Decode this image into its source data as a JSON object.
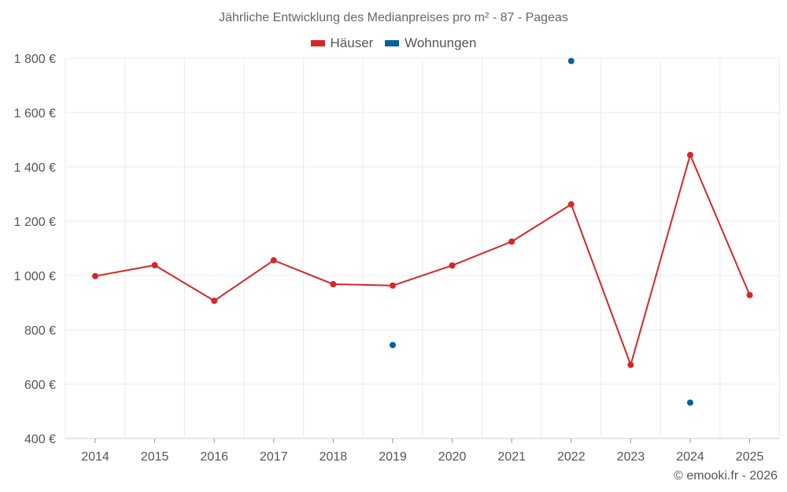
{
  "chart_data": {
    "type": "line",
    "title": "Jährliche Entwicklung des Medianpreises pro m² - 87 - Pageas",
    "categories": [
      "2014",
      "2015",
      "2016",
      "2017",
      "2018",
      "2019",
      "2020",
      "2021",
      "2022",
      "2023",
      "2024",
      "2025"
    ],
    "series": [
      {
        "name": "Häuser",
        "color": "#d62728",
        "style": "line-markers",
        "values": [
          998,
          1038,
          907,
          1056,
          968,
          963,
          1037,
          1125,
          1262,
          671,
          1444,
          928
        ]
      },
      {
        "name": "Wohnungen",
        "color": "#0a5fa0",
        "style": "markers",
        "values": [
          null,
          null,
          null,
          null,
          null,
          744,
          null,
          null,
          1790,
          null,
          532,
          null
        ]
      }
    ],
    "y_ticks": [
      400,
      600,
      800,
      1000,
      1200,
      1400,
      1600,
      1800
    ],
    "y_tick_labels": [
      "400 €",
      "600 €",
      "800 €",
      "1 000 €",
      "1 200 €",
      "1 400 €",
      "1 600 €",
      "1 800 €"
    ],
    "ylim": [
      400,
      1800
    ],
    "xlabel": "",
    "ylabel": "",
    "grid": true,
    "legend_position": "top-center"
  },
  "credit": "© emooki.fr - 2026"
}
